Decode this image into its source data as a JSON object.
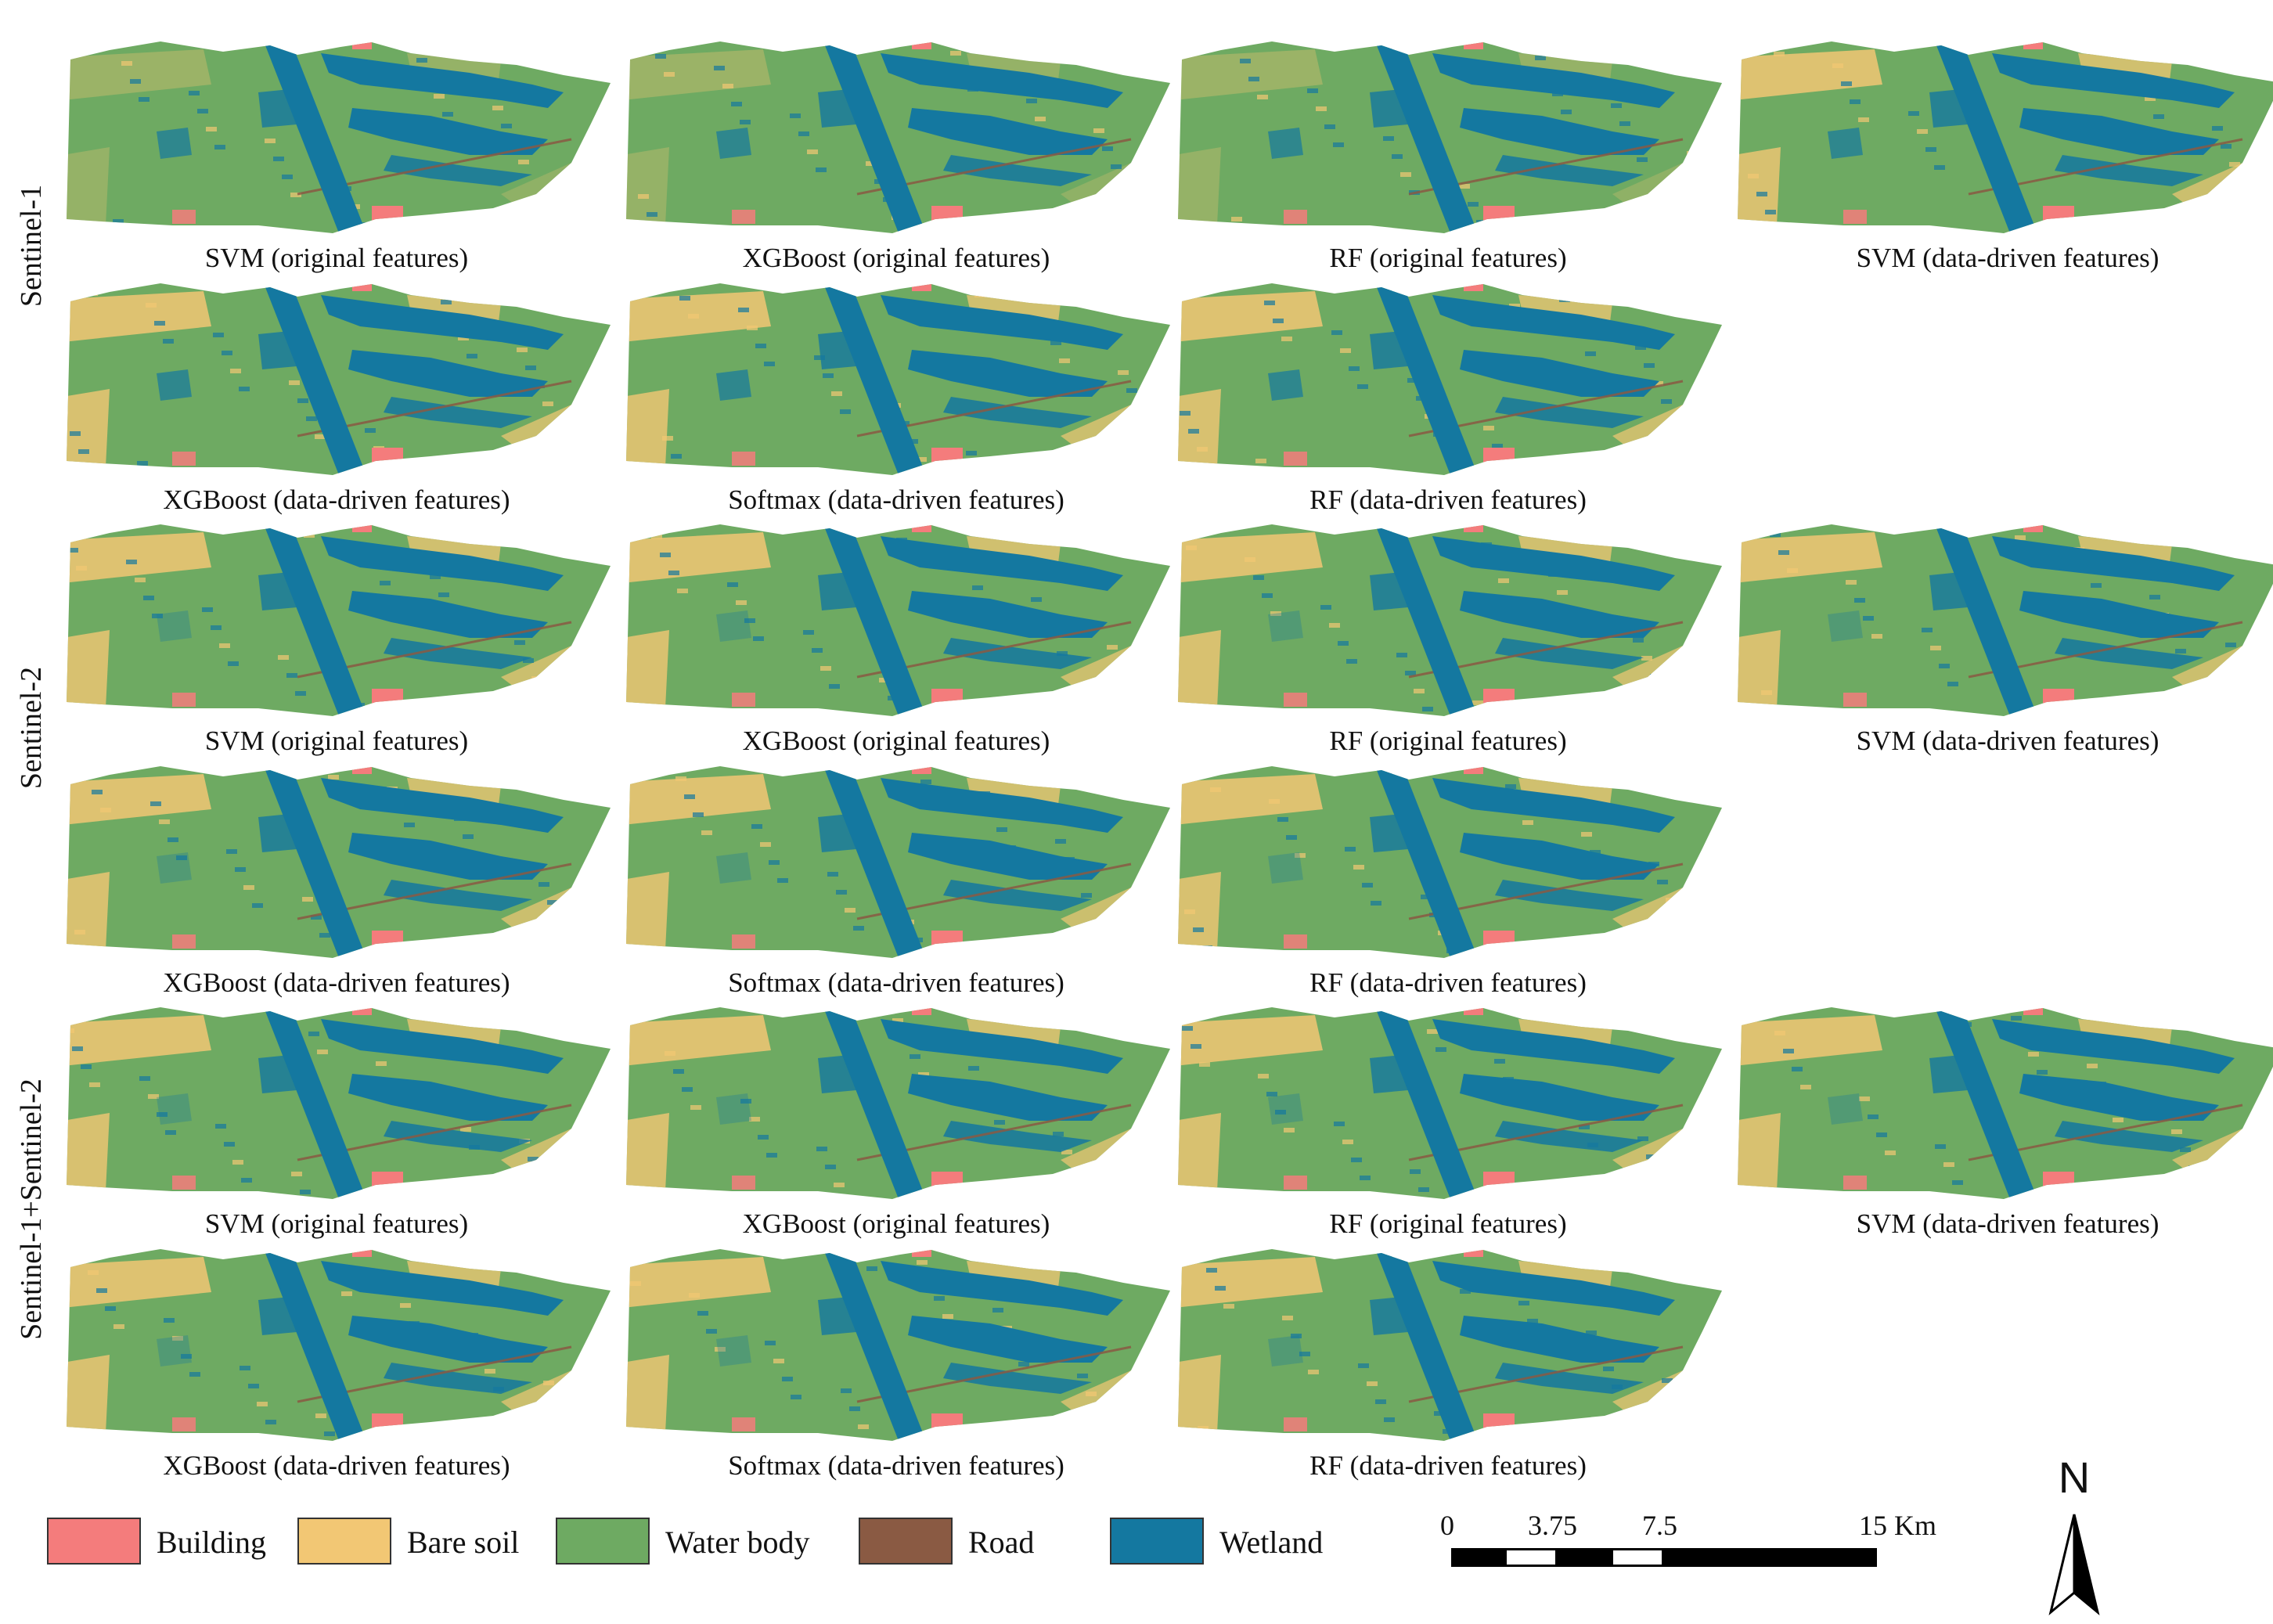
{
  "groups": [
    {
      "label": "Sentinel-1"
    },
    {
      "label": "Sentinel-2"
    },
    {
      "label": "Sentinel-1+Sentinel-2"
    }
  ],
  "panels": [
    [
      [
        "SVM (original features)",
        "XGBoost (original features)",
        "RF (original features)",
        "SVM (data-driven features)"
      ],
      [
        "XGBoost (data-driven features)",
        "Softmax (data-driven features)",
        "RF (data-driven features)"
      ]
    ],
    [
      [
        "SVM (original features)",
        "XGBoost (original features)",
        "RF (original features)",
        "SVM (data-driven features)"
      ],
      [
        "XGBoost (data-driven features)",
        "Softmax (data-driven features)",
        "RF (data-driven features)"
      ]
    ],
    [
      [
        "SVM (original features)",
        "XGBoost (original features)",
        "RF (original features)",
        "SVM (data-driven features)"
      ],
      [
        "XGBoost (data-driven features)",
        "Softmax (data-driven features)",
        "RF (data-driven features)"
      ]
    ]
  ],
  "legend": [
    {
      "label": "Building",
      "color": "#f47c7c"
    },
    {
      "label": "Bare soil",
      "color": "#f2c774"
    },
    {
      "label": "Water body",
      "color": "#6eaa62"
    },
    {
      "label": "Road",
      "color": "#8a5a43"
    },
    {
      "label": "Wetland",
      "color": "#1478a0"
    }
  ],
  "scale": {
    "ticks": [
      "0",
      "3.75",
      "7.5",
      "15 Km"
    ]
  },
  "north_label": "N"
}
